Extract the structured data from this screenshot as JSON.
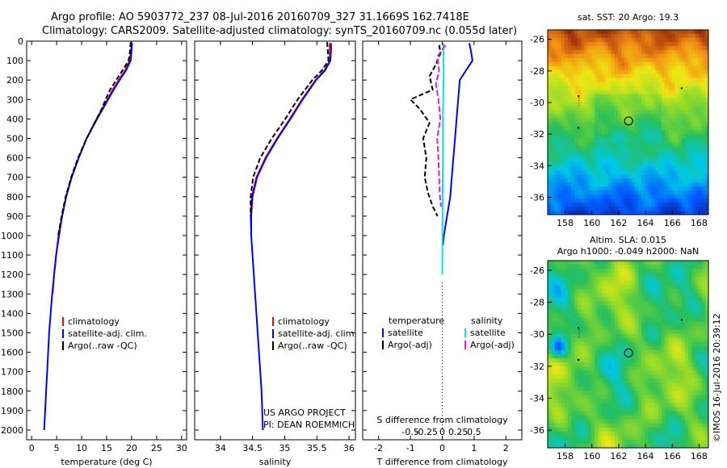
{
  "header": {
    "line1": "Argo profile: AO 5903772_237 08-Jul-2016 20160709_327 31.1669S 162.7418E",
    "line2": "Climatology: CARS2009. Satellite-adjusted climatology: synTS_20160709.nc (0.055d later)"
  },
  "credits": {
    "project": "US ARGO PROJECT",
    "pi": "PI: DEAN ROEMMICH",
    "imos": "©IMOS 16-Jul-2016 20:39:12"
  },
  "chart_data": [
    {
      "id": "temperature",
      "type": "line",
      "xlabel": "temperature (deg C)",
      "xlim": [
        -1,
        31
      ],
      "ylim": [
        0,
        2050
      ],
      "xticks": [
        0,
        5,
        10,
        15,
        20,
        25,
        30
      ],
      "yticks": [
        0,
        100,
        200,
        300,
        400,
        500,
        600,
        700,
        800,
        900,
        1000,
        1100,
        1200,
        1300,
        1400,
        1500,
        1600,
        1700,
        1800,
        1900,
        2000
      ],
      "legend": [
        "climatology",
        "satellite-adj. clim.",
        "Argo(..raw -QC)"
      ],
      "series": [
        {
          "name": "climatology",
          "color": "#ff0000",
          "y": [
            10,
            50,
            100,
            150,
            200,
            250,
            300,
            400,
            500,
            600,
            700,
            800,
            900,
            1000,
            1100,
            1200,
            1300
          ],
          "x": [
            20.0,
            19.9,
            19.6,
            18.7,
            17.4,
            16.2,
            15.2,
            13.0,
            11.0,
            9.4,
            8.0,
            6.9,
            6.1,
            5.5,
            4.9,
            4.5,
            4.2
          ]
        },
        {
          "name": "satellite-adj. clim.",
          "color": "#0000ff",
          "y": [
            10,
            50,
            100,
            150,
            200,
            250,
            300,
            400,
            500,
            600,
            700,
            800,
            900,
            1000,
            1100,
            1200,
            1300,
            1400,
            1500,
            1600,
            1700,
            1800,
            1900,
            2000
          ],
          "x": [
            20.1,
            20.0,
            19.8,
            18.9,
            17.6,
            16.4,
            15.3,
            13.1,
            11.0,
            9.4,
            8.0,
            6.9,
            6.1,
            5.4,
            4.9,
            4.5,
            4.1,
            3.8,
            3.5,
            3.3,
            3.1,
            2.9,
            2.7,
            2.5
          ]
        },
        {
          "name": "Argo(..raw -QC)",
          "color": "#000000",
          "y": [
            5,
            50,
            100,
            150,
            200,
            250,
            300,
            350,
            400,
            500,
            600,
            700,
            800,
            900,
            1000
          ],
          "x": [
            19.8,
            19.7,
            19.4,
            18.2,
            16.9,
            15.7,
            14.8,
            14.0,
            13.0,
            11.0,
            9.3,
            7.9,
            6.8,
            6.0,
            5.3
          ]
        }
      ]
    },
    {
      "id": "salinity",
      "type": "line",
      "xlabel": "salinity",
      "xlim": [
        33.6,
        36.1
      ],
      "ylim": [
        0,
        2050
      ],
      "xticks": [
        34,
        34.5,
        35,
        35.5,
        36
      ],
      "legend": [
        "climatology",
        "satellite-adj. clim.",
        "Argo(..raw -QC)"
      ],
      "series": [
        {
          "name": "climatology",
          "color": "#ff0000",
          "y": [
            10,
            50,
            100,
            150,
            200,
            300,
            400,
            500,
            600,
            700,
            800,
            900,
            1000
          ],
          "x": [
            35.7,
            35.7,
            35.7,
            35.62,
            35.48,
            35.27,
            35.08,
            34.88,
            34.7,
            34.56,
            34.49,
            34.47,
            34.48
          ]
        },
        {
          "name": "satellite-adj. clim.",
          "color": "#0000ff",
          "y": [
            10,
            50,
            100,
            150,
            200,
            300,
            400,
            500,
            600,
            700,
            800,
            900,
            1000,
            1100,
            1200,
            1300,
            1400,
            1500,
            1600,
            1700,
            1800,
            1900,
            2000
          ],
          "x": [
            35.72,
            35.72,
            35.71,
            35.63,
            35.49,
            35.28,
            35.09,
            34.89,
            34.71,
            34.57,
            34.5,
            34.48,
            34.48,
            34.5,
            34.52,
            34.54,
            34.56,
            34.58,
            34.6,
            34.62,
            34.64,
            34.65,
            34.66
          ]
        },
        {
          "name": "Argo(..raw -QC)",
          "color": "#000000",
          "y": [
            5,
            50,
            100,
            150,
            200,
            300,
            400,
            500,
            600,
            700,
            800,
            900
          ],
          "x": [
            35.66,
            35.67,
            35.68,
            35.58,
            35.43,
            35.2,
            35.01,
            34.8,
            34.62,
            34.51,
            34.47,
            34.47
          ]
        }
      ]
    },
    {
      "id": "differences",
      "type": "line",
      "xlabel_top": "S difference from climatology",
      "xlabel": "T difference from climatology",
      "xlim": [
        -2.5,
        2.5
      ],
      "xticks": [
        -2,
        -1,
        0,
        1,
        2
      ],
      "xtick_labels": [
        "-2",
        "-1",
        "0",
        "1",
        "2"
      ],
      "sticks": [
        -0.5,
        -0.25,
        0,
        0.25,
        0.5
      ],
      "stick_labels": [
        "-0.5",
        "-0.25",
        "0",
        "0.25",
        "0.5"
      ],
      "legend_titles": [
        "temperature",
        "salinity"
      ],
      "legend": [
        "satellite",
        "Argo(-adj)",
        "satellite",
        "Argo(-adj)"
      ],
      "series": [
        {
          "name": "satellite",
          "color": "#0000ff",
          "y": [
            10,
            50,
            100,
            150,
            200,
            300,
            400,
            500,
            600,
            700,
            800,
            900,
            1000,
            1050
          ],
          "x": [
            0.85,
            0.9,
            0.95,
            0.75,
            0.55,
            0.5,
            0.45,
            0.4,
            0.35,
            0.3,
            0.25,
            0.15,
            0.05,
            0.02
          ]
        },
        {
          "name": "Argo(-adj)",
          "color": "#000000",
          "y": [
            20,
            60,
            120,
            180,
            250,
            300,
            350,
            420,
            500,
            600,
            700,
            780,
            850,
            900
          ],
          "x": [
            -0.1,
            -0.05,
            -0.2,
            -0.4,
            -0.3,
            -1.0,
            -0.7,
            -0.4,
            -0.6,
            -0.5,
            -0.55,
            -0.45,
            -0.3,
            -0.15
          ]
        },
        {
          "name": "satellite",
          "color": "#00e5e5",
          "y": [
            10,
            200,
            400,
            600,
            800,
            1000,
            1200
          ],
          "x": [
            0.02,
            0.02,
            0.01,
            0.01,
            0.005,
            0.003,
            0.0
          ]
        },
        {
          "name": "Argo(-adj)",
          "color": "#ee11ee",
          "y": [
            20,
            80,
            150,
            220,
            300,
            400,
            500,
            600,
            700,
            780,
            850
          ],
          "x": [
            0.05,
            -0.08,
            -0.05,
            -0.1,
            -0.06,
            -0.03,
            -0.08,
            -0.06,
            -0.05,
            -0.04,
            -0.02
          ]
        }
      ]
    },
    {
      "id": "sst_map",
      "type": "heatmap",
      "title": "sat. SST: 20 Argo: 19.3",
      "xlim": [
        156.7,
        168.7
      ],
      "ylim": [
        -37.1,
        -25.4
      ],
      "xticks": [
        158,
        160,
        162,
        164,
        166,
        168
      ],
      "yticks": [
        -26,
        -28,
        -30,
        -32,
        -34,
        -36
      ],
      "float_position": {
        "lon": 162.74,
        "lat": -31.17
      }
    },
    {
      "id": "sla_map",
      "type": "heatmap",
      "title": "Altim. SLA: 0.015",
      "subtitle": "Argo h1000: -0.049 h2000: NaN",
      "xlim": [
        156.7,
        168.7
      ],
      "ylim": [
        -37.1,
        -25.4
      ],
      "xticks": [
        158,
        160,
        162,
        164,
        166,
        168
      ],
      "yticks": [
        -26,
        -28,
        -30,
        -32,
        -34,
        -36
      ],
      "float_position": {
        "lon": 162.74,
        "lat": -31.17
      }
    }
  ]
}
